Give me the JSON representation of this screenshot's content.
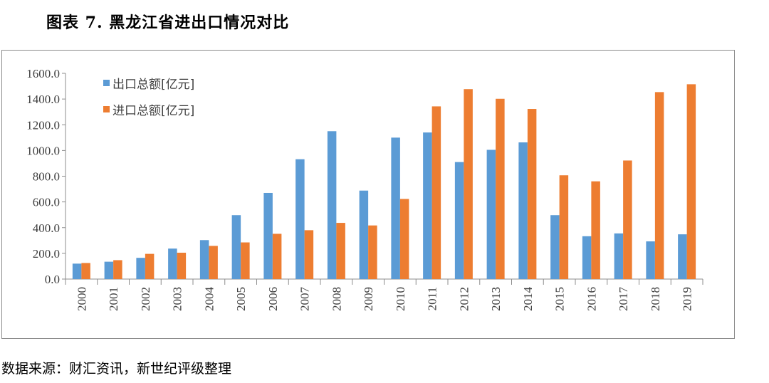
{
  "figure_title": "图表 7. 黑龙江省进出口情况对比",
  "source_note": "数据来源：财汇资讯，新世纪评级整理",
  "chart_data": {
    "type": "bar",
    "title": "",
    "xlabel": "",
    "ylabel": "",
    "ylim": [
      0,
      1600
    ],
    "y_ticks": [
      "0.0",
      "200.0",
      "400.0",
      "600.0",
      "800.0",
      "1000.0",
      "1200.0",
      "1400.0",
      "1600.0"
    ],
    "categories": [
      "2000",
      "2001",
      "2002",
      "2003",
      "2004",
      "2005",
      "2006",
      "2007",
      "2008",
      "2009",
      "2010",
      "2011",
      "2012",
      "2013",
      "2014",
      "2015",
      "2016",
      "2017",
      "2018",
      "2019"
    ],
    "series": [
      {
        "name": "出口总额[亿元]",
        "color": "#5B9BD5",
        "values": [
          120,
          135,
          165,
          237,
          303,
          497,
          670,
          932,
          1150,
          688,
          1100,
          1140,
          910,
          1005,
          1063,
          497,
          333,
          355,
          293,
          348
        ]
      },
      {
        "name": "进口总额[亿元]",
        "color": "#ED7D31",
        "values": [
          125,
          147,
          196,
          205,
          258,
          285,
          352,
          380,
          437,
          417,
          623,
          1343,
          1477,
          1402,
          1323,
          807,
          760,
          922,
          1454,
          1515
        ]
      }
    ],
    "legend": "top-left",
    "grid": false
  }
}
